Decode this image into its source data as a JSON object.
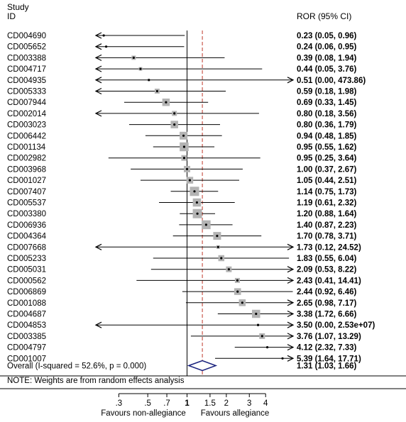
{
  "header": {
    "study_line1": "Study",
    "study_line2": "ID",
    "ror_header": "ROR (95% CI)"
  },
  "footer": {
    "overall_label": "Overall  (I-squared = 52.6%, p = 0.000)",
    "overall_ci": "1.31 (1.03, 1.66)",
    "note": "NOTE: Weights are from random effects analysis",
    "favours_left": "Favours non-allegiance",
    "favours_right": "Favours allegiance"
  },
  "colors": {
    "box": "#b3b3b3",
    "line": "#000000",
    "null_line": "#000000",
    "pooled_line": "#c0392b",
    "diamond": "#1a237e"
  },
  "chart_data": {
    "type": "forest",
    "x_scale": "log",
    "null_value": 1,
    "xlim": [
      0.2,
      6.5
    ],
    "ticks": [
      0.3,
      0.5,
      0.7,
      1,
      1.5,
      2,
      3,
      4
    ],
    "tick_labels": [
      ".3",
      ".5",
      ".7",
      "1",
      "1.5",
      "2",
      "3",
      "4"
    ],
    "studies": [
      {
        "id": "CD004690",
        "ror": 0.23,
        "lo": 0.05,
        "hi": 0.96,
        "weight": 0,
        "label": "0.23 (0.05, 0.96)"
      },
      {
        "id": "CD005652",
        "ror": 0.24,
        "lo": 0.06,
        "hi": 0.95,
        "weight": 0,
        "label": "0.24 (0.06, 0.95)"
      },
      {
        "id": "CD003388",
        "ror": 0.39,
        "lo": 0.08,
        "hi": 1.94,
        "weight": 0.3,
        "label": "0.39 (0.08, 1.94)"
      },
      {
        "id": "CD004717",
        "ror": 0.44,
        "lo": 0.05,
        "hi": 3.76,
        "weight": 0.2,
        "label": "0.44 (0.05, 3.76)"
      },
      {
        "id": "CD004935",
        "ror": 0.51,
        "lo": 0.0,
        "hi": 473.86,
        "weight": 0.05,
        "label": "0.51 (0.00, 473.86)"
      },
      {
        "id": "CD005333",
        "ror": 0.59,
        "lo": 0.18,
        "hi": 1.98,
        "weight": 0.4,
        "label": "0.59 (0.18, 1.98)"
      },
      {
        "id": "CD007944",
        "ror": 0.69,
        "lo": 0.33,
        "hi": 1.45,
        "weight": 0.75,
        "label": "0.69 (0.33, 1.45)"
      },
      {
        "id": "CD002014",
        "ror": 0.8,
        "lo": 0.18,
        "hi": 3.56,
        "weight": 0.4,
        "label": "0.80 (0.18, 3.56)"
      },
      {
        "id": "CD003023",
        "ror": 0.8,
        "lo": 0.36,
        "hi": 1.79,
        "weight": 0.75,
        "label": "0.80 (0.36, 1.79)"
      },
      {
        "id": "CD006442",
        "ror": 0.94,
        "lo": 0.48,
        "hi": 1.85,
        "weight": 0.8,
        "label": "0.94 (0.48, 1.85)"
      },
      {
        "id": "CD001134",
        "ror": 0.95,
        "lo": 0.55,
        "hi": 1.62,
        "weight": 0.95,
        "label": "0.95 (0.55, 1.62)"
      },
      {
        "id": "CD002982",
        "ror": 0.95,
        "lo": 0.25,
        "hi": 3.64,
        "weight": 0.5,
        "label": "0.95 (0.25, 3.64)"
      },
      {
        "id": "CD003968",
        "ror": 1.0,
        "lo": 0.37,
        "hi": 2.67,
        "weight": 0.6,
        "label": "1.00 (0.37, 2.67)"
      },
      {
        "id": "CD001027",
        "ror": 1.05,
        "lo": 0.44,
        "hi": 2.51,
        "weight": 0.65,
        "label": "1.05 (0.44, 2.51)"
      },
      {
        "id": "CD007407",
        "ror": 1.14,
        "lo": 0.75,
        "hi": 1.73,
        "weight": 1.0,
        "label": "1.14 (0.75, 1.73)"
      },
      {
        "id": "CD005537",
        "ror": 1.19,
        "lo": 0.61,
        "hi": 2.32,
        "weight": 0.85,
        "label": "1.19 (0.61, 2.32)"
      },
      {
        "id": "CD003380",
        "ror": 1.2,
        "lo": 0.88,
        "hi": 1.64,
        "weight": 1.0,
        "label": "1.20 (0.88, 1.64)"
      },
      {
        "id": "CD006936",
        "ror": 1.4,
        "lo": 0.87,
        "hi": 2.23,
        "weight": 0.95,
        "label": "1.40 (0.87, 2.23)"
      },
      {
        "id": "CD004364",
        "ror": 1.7,
        "lo": 0.78,
        "hi": 3.71,
        "weight": 0.8,
        "label": "1.70 (0.78, 3.71)"
      },
      {
        "id": "CD007668",
        "ror": 1.73,
        "lo": 0.12,
        "hi": 24.52,
        "weight": 0.2,
        "label": "1.73 (0.12, 24.52)"
      },
      {
        "id": "CD005233",
        "ror": 1.83,
        "lo": 0.55,
        "hi": 6.04,
        "weight": 0.55,
        "label": "1.83 (0.55, 6.04)"
      },
      {
        "id": "CD005031",
        "ror": 2.09,
        "lo": 0.53,
        "hi": 8.22,
        "weight": 0.5,
        "label": "2.09 (0.53, 8.22)"
      },
      {
        "id": "CD000562",
        "ror": 2.43,
        "lo": 0.41,
        "hi": 14.41,
        "weight": 0.4,
        "label": "2.43 (0.41, 14.41)"
      },
      {
        "id": "CD006869",
        "ror": 2.44,
        "lo": 0.92,
        "hi": 6.46,
        "weight": 0.65,
        "label": "2.44 (0.92, 6.46)"
      },
      {
        "id": "CD001088",
        "ror": 2.65,
        "lo": 0.98,
        "hi": 7.17,
        "weight": 0.65,
        "label": "2.65 (0.98, 7.17)"
      },
      {
        "id": "CD004687",
        "ror": 3.38,
        "lo": 1.72,
        "hi": 6.66,
        "weight": 0.85,
        "label": "3.38 (1.72, 6.66)"
      },
      {
        "id": "CD004853",
        "ror": 3.5,
        "lo": 0.0,
        "hi": 25300000,
        "weight": 0.05,
        "label": "3.50 (0.00, 2.53e+07)"
      },
      {
        "id": "CD003385",
        "ror": 3.76,
        "lo": 1.07,
        "hi": 13.29,
        "weight": 0.5,
        "label": "3.76 (1.07, 13.29)"
      },
      {
        "id": "CD004797",
        "ror": 4.12,
        "lo": 2.32,
        "hi": 7.33,
        "weight": 0,
        "label": "4.12 (2.32, 7.33)"
      },
      {
        "id": "CD001007",
        "ror": 5.39,
        "lo": 1.64,
        "hi": 17.71,
        "weight": 0,
        "label": "5.39 (1.64, 17.71)"
      }
    ],
    "overall": {
      "ror": 1.31,
      "lo": 1.03,
      "hi": 1.66
    }
  }
}
